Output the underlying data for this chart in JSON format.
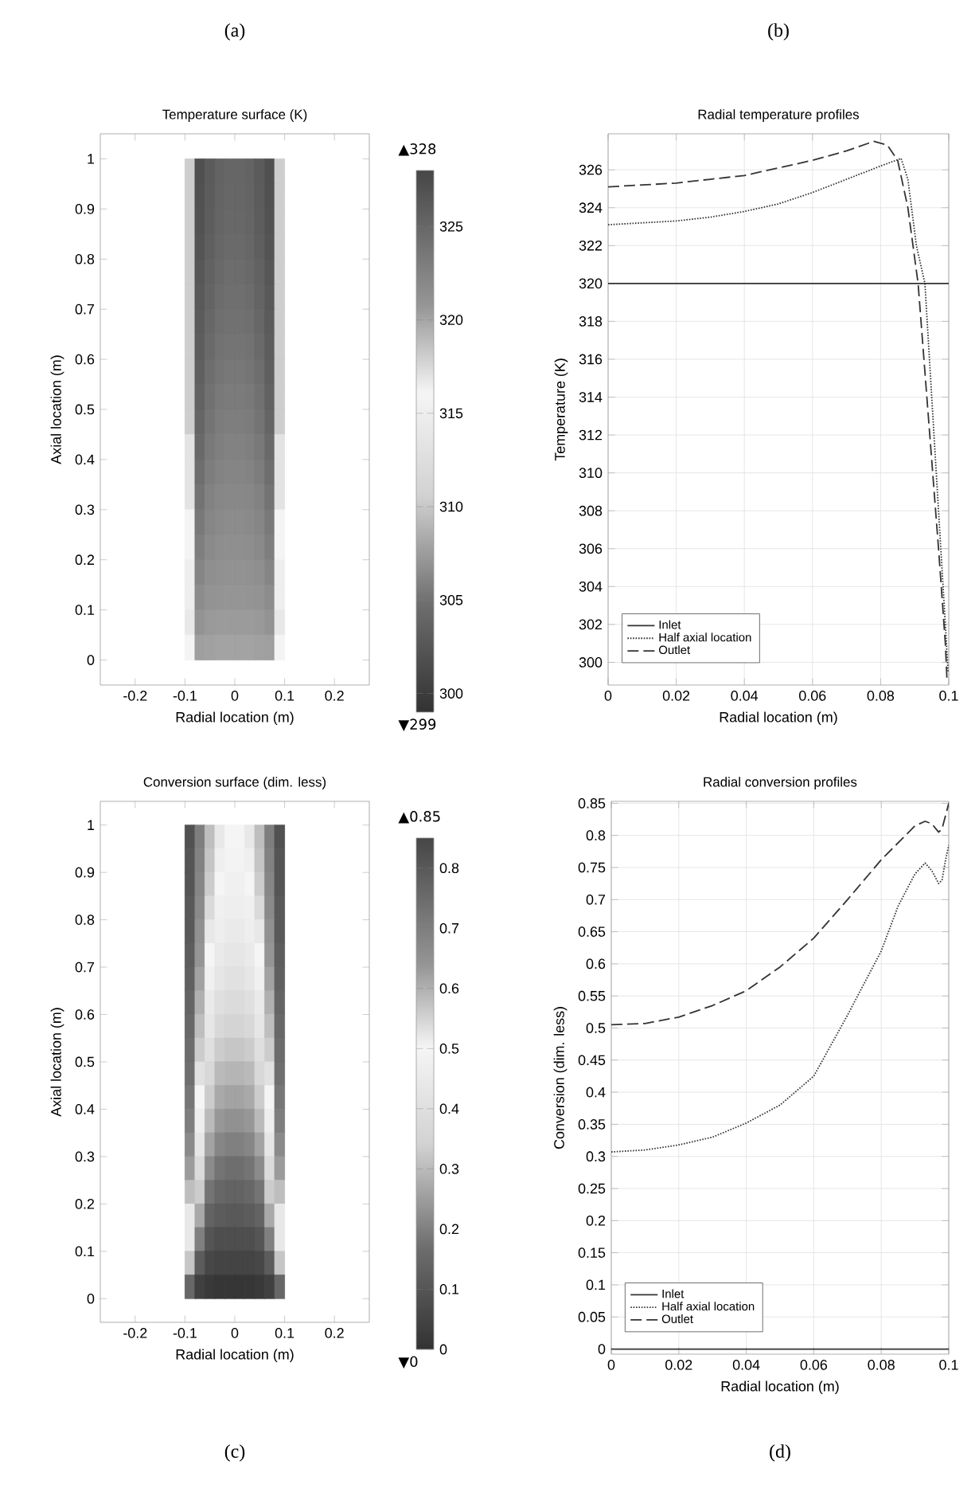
{
  "chart_data": [
    {
      "type": "scatter",
      "title": "Temperature surface (K)",
      "xlabel": "Radial location (m)",
      "ylabel": "Axial location (m)",
      "marker": "square",
      "series": [
        {
          "x": [
            -0.09,
            -0.07,
            -0.05,
            -0.03,
            -0.01,
            0.01,
            0.03,
            0.05,
            0.07,
            0.09,
            -0.09,
            -0.07,
            -0.05,
            -0.03,
            -0.01,
            0.01,
            0.03,
            0.05,
            0.07,
            0.09,
            -0.09,
            -0.07,
            -0.05,
            -0.03,
            -0.01,
            0.01,
            0.03,
            0.05,
            0.07,
            0.09,
            -0.09,
            -0.07,
            -0.05,
            -0.03,
            -0.01,
            0.01,
            0.03,
            0.05,
            0.07,
            0.09,
            -0.09,
            -0.07,
            -0.05,
            -0.03,
            -0.01,
            0.01,
            0.03,
            0.05,
            0.07,
            0.09,
            -0.09,
            -0.07,
            -0.05,
            -0.03,
            -0.01,
            0.01,
            0.03,
            0.05,
            0.07,
            0.09,
            -0.09,
            -0.07,
            -0.05,
            -0.03,
            -0.01,
            0.01,
            0.03,
            0.05,
            0.07,
            0.09,
            -0.09,
            -0.07,
            -0.05,
            -0.03,
            -0.01,
            0.01,
            0.03,
            0.05,
            0.07,
            0.09,
            -0.09,
            -0.07,
            -0.05,
            -0.03,
            -0.01,
            0.01,
            0.03,
            0.05,
            0.07,
            0.09,
            -0.09,
            -0.07,
            -0.05,
            -0.03,
            -0.01,
            0.01,
            0.03,
            0.05,
            0.07,
            0.09,
            -0.09,
            -0.07,
            -0.05,
            -0.03,
            -0.01,
            0.01,
            0.03,
            0.05,
            0.07,
            0.09,
            -0.09,
            -0.07,
            -0.05,
            -0.03,
            -0.01,
            0.01,
            0.03,
            0.05,
            0.07,
            0.09,
            -0.09,
            -0.07,
            -0.05,
            -0.03,
            -0.01,
            0.01,
            0.03,
            0.05,
            0.07,
            0.09,
            -0.09,
            -0.07,
            -0.05,
            -0.03,
            -0.01,
            0.01,
            0.03,
            0.05,
            0.07,
            0.09,
            -0.09,
            -0.07,
            -0.05,
            -0.03,
            -0.01,
            0.01,
            0.03,
            0.05,
            0.07,
            0.09,
            -0.09,
            -0.07,
            -0.05,
            -0.03,
            -0.01,
            0.01,
            0.03,
            0.05,
            0.07,
            0.09,
            -0.09,
            -0.07,
            -0.05,
            -0.03,
            -0.01,
            0.01,
            0.03,
            0.05,
            0.07,
            0.09,
            -0.09,
            -0.07,
            -0.05,
            -0.03,
            -0.01,
            0.01,
            0.03,
            0.05,
            0.07,
            0.09,
            -0.09,
            -0.07,
            -0.05,
            -0.03,
            -0.01,
            0.01,
            0.03,
            0.05,
            0.07,
            0.09,
            -0.09,
            -0.07,
            -0.05,
            -0.03,
            -0.01,
            0.01,
            0.03,
            0.05,
            0.07,
            0.09
          ],
          "values": [
            0.975,
            0.975,
            0.975,
            0.975,
            0.975,
            0.975,
            0.975,
            0.975,
            0.975,
            0.975,
            0.925,
            0.925,
            0.925,
            0.925,
            0.925,
            0.925,
            0.925,
            0.925,
            0.925,
            0.925,
            0.875,
            0.875,
            0.875,
            0.875,
            0.875,
            0.875,
            0.875,
            0.875,
            0.875,
            0.875,
            0.825,
            0.825,
            0.825,
            0.825,
            0.825,
            0.825,
            0.825,
            0.825,
            0.825,
            0.825,
            0.775,
            0.775,
            0.775,
            0.775,
            0.775,
            0.775,
            0.775,
            0.775,
            0.775,
            0.775,
            0.725,
            0.725,
            0.725,
            0.725,
            0.725,
            0.725,
            0.725,
            0.725,
            0.725,
            0.725,
            0.675,
            0.675,
            0.675,
            0.675,
            0.675,
            0.675,
            0.675,
            0.675,
            0.675,
            0.675,
            0.625,
            0.625,
            0.625,
            0.625,
            0.625,
            0.625,
            0.625,
            0.625,
            0.625,
            0.625,
            0.575,
            0.575,
            0.575,
            0.575,
            0.575,
            0.575,
            0.575,
            0.575,
            0.575,
            0.575,
            0.525,
            0.525,
            0.525,
            0.525,
            0.525,
            0.525,
            0.525,
            0.525,
            0.525,
            0.525,
            0.475,
            0.475,
            0.475,
            0.475,
            0.475,
            0.475,
            0.475,
            0.475,
            0.475,
            0.475,
            0.425,
            0.425,
            0.425,
            0.425,
            0.425,
            0.425,
            0.425,
            0.425,
            0.425,
            0.425,
            0.375,
            0.375,
            0.375,
            0.375,
            0.375,
            0.375,
            0.375,
            0.375,
            0.375,
            0.375,
            0.325,
            0.325,
            0.325,
            0.325,
            0.325,
            0.325,
            0.325,
            0.325,
            0.325,
            0.325,
            0.275,
            0.275,
            0.275,
            0.275,
            0.275,
            0.275,
            0.275,
            0.275,
            0.275,
            0.275,
            0.225,
            0.225,
            0.225,
            0.225,
            0.225,
            0.225,
            0.225,
            0.225,
            0.225,
            0.225,
            0.175,
            0.175,
            0.175,
            0.175,
            0.175,
            0.175,
            0.175,
            0.175,
            0.175,
            0.175,
            0.125,
            0.125,
            0.125,
            0.125,
            0.125,
            0.125,
            0.125,
            0.125,
            0.125,
            0.125,
            0.075,
            0.075,
            0.075,
            0.075,
            0.075,
            0.075,
            0.075,
            0.075,
            0.075,
            0.075,
            0.025,
            0.025,
            0.025,
            0.025,
            0.025,
            0.025,
            0.025,
            0.025,
            0.025,
            0.025
          ],
          "cvalues": [
            318,
            327.1,
            326.1,
            325.4,
            325.1,
            325.1,
            325.4,
            326.1,
            327.1,
            318,
            318,
            327,
            326,
            325.3,
            325,
            325,
            325.3,
            326,
            327,
            318,
            318,
            326.9,
            325.9,
            325.2,
            324.9,
            324.9,
            325.2,
            325.9,
            326.9,
            318,
            318,
            326.7,
            325.7,
            325,
            324.7,
            324.7,
            325,
            325.7,
            326.7,
            318,
            318,
            326.5,
            325.5,
            324.8,
            324.5,
            324.5,
            324.8,
            325.5,
            326.5,
            318,
            318,
            326.3,
            325.3,
            324.6,
            324.3,
            324.3,
            324.6,
            325.3,
            326.3,
            318,
            318,
            326.1,
            325,
            324.3,
            324.1,
            324.1,
            324.3,
            325,
            326.1,
            318,
            318,
            325.9,
            324.7,
            324,
            323.8,
            323.8,
            324,
            324.7,
            325.9,
            318,
            318,
            325.7,
            324.4,
            323.7,
            323.5,
            323.5,
            323.7,
            324.4,
            325.7,
            318,
            318,
            325.5,
            324.1,
            323.4,
            323.2,
            323.2,
            323.4,
            324.1,
            325.5,
            318,
            318,
            325.2,
            323.8,
            323.1,
            322.9,
            322.9,
            323.1,
            323.8,
            325.2,
            318,
            317,
            324.8,
            323.4,
            322.8,
            322.6,
            322.6,
            322.8,
            323.4,
            324.8,
            317,
            317,
            324.4,
            323,
            322.5,
            322.3,
            322.3,
            322.5,
            323,
            324.4,
            317,
            317,
            323.9,
            322.6,
            322.1,
            322,
            322,
            322.1,
            322.6,
            323.9,
            317,
            316,
            323.4,
            322.2,
            321.8,
            321.7,
            321.7,
            321.8,
            322.2,
            323.4,
            316,
            316,
            322.9,
            321.8,
            321.5,
            321.4,
            321.4,
            321.5,
            321.8,
            322.9,
            316,
            315,
            322.3,
            321.4,
            321.2,
            321.1,
            321.1,
            321.2,
            321.4,
            322.3,
            315,
            315,
            321.7,
            321,
            320.9,
            320.8,
            320.8,
            320.9,
            321,
            321.7,
            315,
            314,
            321,
            320.6,
            320.5,
            320.5,
            320.5,
            320.5,
            320.6,
            321,
            314,
            316,
            320.3,
            320.2,
            320.1,
            320.1,
            320.1,
            320.1,
            320.2,
            320.3,
            316
          ]
        }
      ],
      "clim": [
        299,
        328
      ],
      "cticks": [
        300,
        305,
        310,
        315,
        320,
        325
      ],
      "xlim": [
        -0.27,
        0.27
      ],
      "xticks": [
        -0.2,
        -0.1,
        0,
        0.1,
        0.2
      ],
      "ylim": [
        -0.05,
        1.05
      ],
      "yticks": [
        0,
        0.1,
        0.2,
        0.3,
        0.4,
        0.5,
        0.6,
        0.7,
        0.8,
        0.9,
        1
      ],
      "annotations": [
        "(a)",
        "▲328",
        "▼299"
      ]
    },
    {
      "type": "line",
      "title": "Radial temperature profiles",
      "xlabel": "Radial location (m)",
      "ylabel": "Temperature (K)",
      "xlim": [
        0,
        0.1
      ],
      "xticks": [
        0,
        0.02,
        0.04,
        0.06,
        0.08,
        0.1
      ],
      "ylim": [
        298.8,
        327.9
      ],
      "yticks": [
        300,
        302,
        304,
        306,
        308,
        310,
        312,
        314,
        316,
        318,
        320,
        322,
        324,
        326
      ],
      "grid": true,
      "legend": "bottom left",
      "series": [
        {
          "name": "Inlet",
          "color": "#333333",
          "line_style": "solid",
          "x": [
            0,
            0.1
          ],
          "values": [
            320,
            320
          ]
        },
        {
          "name": "Half axial location",
          "color": "#333333",
          "line_style": "dotted",
          "x": [
            0,
            0.01,
            0.02,
            0.03,
            0.04,
            0.05,
            0.06,
            0.07,
            0.08,
            0.086,
            0.088,
            0.0905,
            0.093,
            0.095,
            0.097,
            0.099,
            0.0998
          ],
          "values": [
            323.1,
            323.2,
            323.3,
            323.5,
            323.8,
            324.2,
            324.8,
            325.5,
            326.2,
            326.6,
            325.5,
            322,
            320,
            314,
            308,
            302,
            299.5
          ]
        },
        {
          "name": "Outlet",
          "color": "#333333",
          "line_style": "dashed",
          "x": [
            0,
            0.01,
            0.02,
            0.03,
            0.04,
            0.05,
            0.06,
            0.07,
            0.078,
            0.082,
            0.085,
            0.088,
            0.091,
            0.094,
            0.097,
            0.099,
            0.0995
          ],
          "values": [
            325.1,
            325.2,
            325.3,
            325.5,
            325.7,
            326.1,
            326.5,
            327,
            327.5,
            327.3,
            326.5,
            324,
            320,
            313,
            306,
            301,
            299
          ]
        }
      ],
      "annotations": [
        "(b)"
      ]
    },
    {
      "type": "scatter",
      "title": "Conversion surface (dim. less)",
      "xlabel": "Radial location (m)",
      "ylabel": "Axial location (m)",
      "marker": "square",
      "series": [
        {
          "x": [
            -0.09,
            -0.07,
            -0.05,
            -0.03,
            -0.01,
            0.01,
            0.03,
            0.05,
            0.07,
            0.09,
            -0.09,
            -0.07,
            -0.05,
            -0.03,
            -0.01,
            0.01,
            0.03,
            0.05,
            0.07,
            0.09,
            -0.09,
            -0.07,
            -0.05,
            -0.03,
            -0.01,
            0.01,
            0.03,
            0.05,
            0.07,
            0.09,
            -0.09,
            -0.07,
            -0.05,
            -0.03,
            -0.01,
            0.01,
            0.03,
            0.05,
            0.07,
            0.09,
            -0.09,
            -0.07,
            -0.05,
            -0.03,
            -0.01,
            0.01,
            0.03,
            0.05,
            0.07,
            0.09,
            -0.09,
            -0.07,
            -0.05,
            -0.03,
            -0.01,
            0.01,
            0.03,
            0.05,
            0.07,
            0.09,
            -0.09,
            -0.07,
            -0.05,
            -0.03,
            -0.01,
            0.01,
            0.03,
            0.05,
            0.07,
            0.09,
            -0.09,
            -0.07,
            -0.05,
            -0.03,
            -0.01,
            0.01,
            0.03,
            0.05,
            0.07,
            0.09,
            -0.09,
            -0.07,
            -0.05,
            -0.03,
            -0.01,
            0.01,
            0.03,
            0.05,
            0.07,
            0.09,
            -0.09,
            -0.07,
            -0.05,
            -0.03,
            -0.01,
            0.01,
            0.03,
            0.05,
            0.07,
            0.09,
            -0.09,
            -0.07,
            -0.05,
            -0.03,
            -0.01,
            0.01,
            0.03,
            0.05,
            0.07,
            0.09,
            -0.09,
            -0.07,
            -0.05,
            -0.03,
            -0.01,
            0.01,
            0.03,
            0.05,
            0.07,
            0.09,
            -0.09,
            -0.07,
            -0.05,
            -0.03,
            -0.01,
            0.01,
            0.03,
            0.05,
            0.07,
            0.09,
            -0.09,
            -0.07,
            -0.05,
            -0.03,
            -0.01,
            0.01,
            0.03,
            0.05,
            0.07,
            0.09,
            -0.09,
            -0.07,
            -0.05,
            -0.03,
            -0.01,
            0.01,
            0.03,
            0.05,
            0.07,
            0.09,
            -0.09,
            -0.07,
            -0.05,
            -0.03,
            -0.01,
            0.01,
            0.03,
            0.05,
            0.07,
            0.09,
            -0.09,
            -0.07,
            -0.05,
            -0.03,
            -0.01,
            0.01,
            0.03,
            0.05,
            0.07,
            0.09,
            -0.09,
            -0.07,
            -0.05,
            -0.03,
            -0.01,
            0.01,
            0.03,
            0.05,
            0.07,
            0.09,
            -0.09,
            -0.07,
            -0.05,
            -0.03,
            -0.01,
            0.01,
            0.03,
            0.05,
            0.07,
            0.09,
            -0.09,
            -0.07,
            -0.05,
            -0.03,
            -0.01,
            0.01,
            0.03,
            0.05,
            0.07,
            0.09
          ],
          "values": [
            0.975,
            0.975,
            0.975,
            0.975,
            0.975,
            0.975,
            0.975,
            0.975,
            0.975,
            0.975,
            0.925,
            0.925,
            0.925,
            0.925,
            0.925,
            0.925,
            0.925,
            0.925,
            0.925,
            0.925,
            0.875,
            0.875,
            0.875,
            0.875,
            0.875,
            0.875,
            0.875,
            0.875,
            0.875,
            0.875,
            0.825,
            0.825,
            0.825,
            0.825,
            0.825,
            0.825,
            0.825,
            0.825,
            0.825,
            0.825,
            0.775,
            0.775,
            0.775,
            0.775,
            0.775,
            0.775,
            0.775,
            0.775,
            0.775,
            0.775,
            0.725,
            0.725,
            0.725,
            0.725,
            0.725,
            0.725,
            0.725,
            0.725,
            0.725,
            0.725,
            0.675,
            0.675,
            0.675,
            0.675,
            0.675,
            0.675,
            0.675,
            0.675,
            0.675,
            0.675,
            0.625,
            0.625,
            0.625,
            0.625,
            0.625,
            0.625,
            0.625,
            0.625,
            0.625,
            0.625,
            0.575,
            0.575,
            0.575,
            0.575,
            0.575,
            0.575,
            0.575,
            0.575,
            0.575,
            0.575,
            0.525,
            0.525,
            0.525,
            0.525,
            0.525,
            0.525,
            0.525,
            0.525,
            0.525,
            0.525,
            0.475,
            0.475,
            0.475,
            0.475,
            0.475,
            0.475,
            0.475,
            0.475,
            0.475,
            0.475,
            0.425,
            0.425,
            0.425,
            0.425,
            0.425,
            0.425,
            0.425,
            0.425,
            0.425,
            0.425,
            0.375,
            0.375,
            0.375,
            0.375,
            0.375,
            0.375,
            0.375,
            0.375,
            0.375,
            0.375,
            0.325,
            0.325,
            0.325,
            0.325,
            0.325,
            0.325,
            0.325,
            0.325,
            0.325,
            0.325,
            0.275,
            0.275,
            0.275,
            0.275,
            0.275,
            0.275,
            0.275,
            0.275,
            0.275,
            0.275,
            0.225,
            0.225,
            0.225,
            0.225,
            0.225,
            0.225,
            0.225,
            0.225,
            0.225,
            0.225,
            0.175,
            0.175,
            0.175,
            0.175,
            0.175,
            0.175,
            0.175,
            0.175,
            0.175,
            0.175,
            0.125,
            0.125,
            0.125,
            0.125,
            0.125,
            0.125,
            0.125,
            0.125,
            0.125,
            0.125,
            0.075,
            0.075,
            0.075,
            0.075,
            0.075,
            0.075,
            0.075,
            0.075,
            0.075,
            0.075,
            0.025,
            0.025,
            0.025,
            0.025,
            0.025,
            0.025,
            0.025,
            0.025,
            0.025,
            0.025
          ],
          "cvalues": [
            0.82,
            0.7,
            0.58,
            0.52,
            0.5,
            0.5,
            0.52,
            0.58,
            0.7,
            0.82,
            0.81,
            0.69,
            0.57,
            0.51,
            0.49,
            0.49,
            0.51,
            0.57,
            0.69,
            0.81,
            0.81,
            0.68,
            0.56,
            0.5,
            0.48,
            0.48,
            0.5,
            0.56,
            0.68,
            0.81,
            0.8,
            0.67,
            0.54,
            0.48,
            0.47,
            0.47,
            0.48,
            0.54,
            0.67,
            0.8,
            0.8,
            0.65,
            0.52,
            0.47,
            0.45,
            0.45,
            0.47,
            0.52,
            0.65,
            0.8,
            0.79,
            0.64,
            0.5,
            0.45,
            0.43,
            0.43,
            0.45,
            0.5,
            0.64,
            0.79,
            0.78,
            0.62,
            0.48,
            0.43,
            0.41,
            0.41,
            0.43,
            0.48,
            0.62,
            0.78,
            0.77,
            0.6,
            0.45,
            0.4,
            0.38,
            0.38,
            0.4,
            0.45,
            0.6,
            0.77,
            0.76,
            0.58,
            0.43,
            0.37,
            0.35,
            0.35,
            0.37,
            0.43,
            0.58,
            0.76,
            0.75,
            0.56,
            0.4,
            0.33,
            0.32,
            0.32,
            0.33,
            0.4,
            0.56,
            0.75,
            0.74,
            0.53,
            0.37,
            0.3,
            0.29,
            0.29,
            0.3,
            0.37,
            0.53,
            0.74,
            0.72,
            0.5,
            0.33,
            0.27,
            0.26,
            0.26,
            0.27,
            0.33,
            0.5,
            0.72,
            0.7,
            0.47,
            0.3,
            0.24,
            0.23,
            0.23,
            0.24,
            0.3,
            0.47,
            0.7,
            0.67,
            0.43,
            0.26,
            0.21,
            0.2,
            0.2,
            0.21,
            0.26,
            0.43,
            0.67,
            0.63,
            0.38,
            0.22,
            0.18,
            0.17,
            0.17,
            0.18,
            0.22,
            0.38,
            0.63,
            0.58,
            0.33,
            0.18,
            0.15,
            0.14,
            0.14,
            0.15,
            0.18,
            0.33,
            0.58,
            0.52,
            0.27,
            0.14,
            0.12,
            0.11,
            0.11,
            0.12,
            0.14,
            0.27,
            0.52,
            0.44,
            0.2,
            0.1,
            0.08,
            0.08,
            0.08,
            0.08,
            0.1,
            0.2,
            0.44,
            0.32,
            0.12,
            0.06,
            0.05,
            0.05,
            0.05,
            0.05,
            0.06,
            0.12,
            0.32,
            0.15,
            0.04,
            0.02,
            0.01,
            0.01,
            0.01,
            0.01,
            0.02,
            0.04,
            0.15
          ]
        }
      ],
      "clim": [
        0,
        0.85
      ],
      "cticks": [
        0,
        0.1,
        0.2,
        0.3,
        0.4,
        0.5,
        0.6,
        0.7,
        0.8
      ],
      "xlim": [
        -0.27,
        0.27
      ],
      "xticks": [
        -0.2,
        -0.1,
        0,
        0.1,
        0.2
      ],
      "ylim": [
        -0.05,
        1.05
      ],
      "yticks": [
        0,
        0.1,
        0.2,
        0.3,
        0.4,
        0.5,
        0.6,
        0.7,
        0.8,
        0.9,
        1
      ],
      "annotations": [
        "(c)",
        "▲0.85",
        "▼0"
      ]
    },
    {
      "type": "line",
      "title": "Radial conversion profiles",
      "xlabel": "Radial location (m)",
      "ylabel": "Conversion (dim. less)",
      "xlim": [
        0,
        0.1
      ],
      "xticks": [
        0,
        0.02,
        0.04,
        0.06,
        0.08,
        0.1
      ],
      "ylim": [
        -0.008,
        0.853
      ],
      "yticks": [
        0,
        0.05,
        0.1,
        0.15,
        0.2,
        0.25,
        0.3,
        0.35,
        0.4,
        0.45,
        0.5,
        0.55,
        0.6,
        0.65,
        0.7,
        0.75,
        0.8,
        0.85
      ],
      "grid": true,
      "legend": "bottom left",
      "series": [
        {
          "name": "Inlet",
          "color": "#333333",
          "line_style": "solid",
          "x": [
            0,
            0.1
          ],
          "values": [
            0,
            0
          ]
        },
        {
          "name": "Half axial location",
          "color": "#333333",
          "line_style": "dotted",
          "x": [
            0,
            0.01,
            0.02,
            0.03,
            0.04,
            0.05,
            0.06,
            0.07,
            0.075,
            0.08,
            0.085,
            0.09,
            0.093,
            0.095,
            0.097,
            0.098,
            0.099,
            0.1
          ],
          "values": [
            0.307,
            0.31,
            0.318,
            0.33,
            0.352,
            0.38,
            0.425,
            0.52,
            0.57,
            0.62,
            0.69,
            0.74,
            0.757,
            0.745,
            0.725,
            0.73,
            0.76,
            0.785
          ]
        },
        {
          "name": "Outlet",
          "color": "#333333",
          "line_style": "dashed",
          "x": [
            0,
            0.01,
            0.02,
            0.03,
            0.04,
            0.05,
            0.06,
            0.07,
            0.08,
            0.09,
            0.093,
            0.095,
            0.097,
            0.098,
            0.099,
            0.1
          ],
          "values": [
            0.505,
            0.507,
            0.517,
            0.535,
            0.558,
            0.595,
            0.64,
            0.7,
            0.762,
            0.815,
            0.822,
            0.818,
            0.805,
            0.81,
            0.83,
            0.85
          ]
        }
      ],
      "annotations": [
        "(d)"
      ]
    }
  ]
}
